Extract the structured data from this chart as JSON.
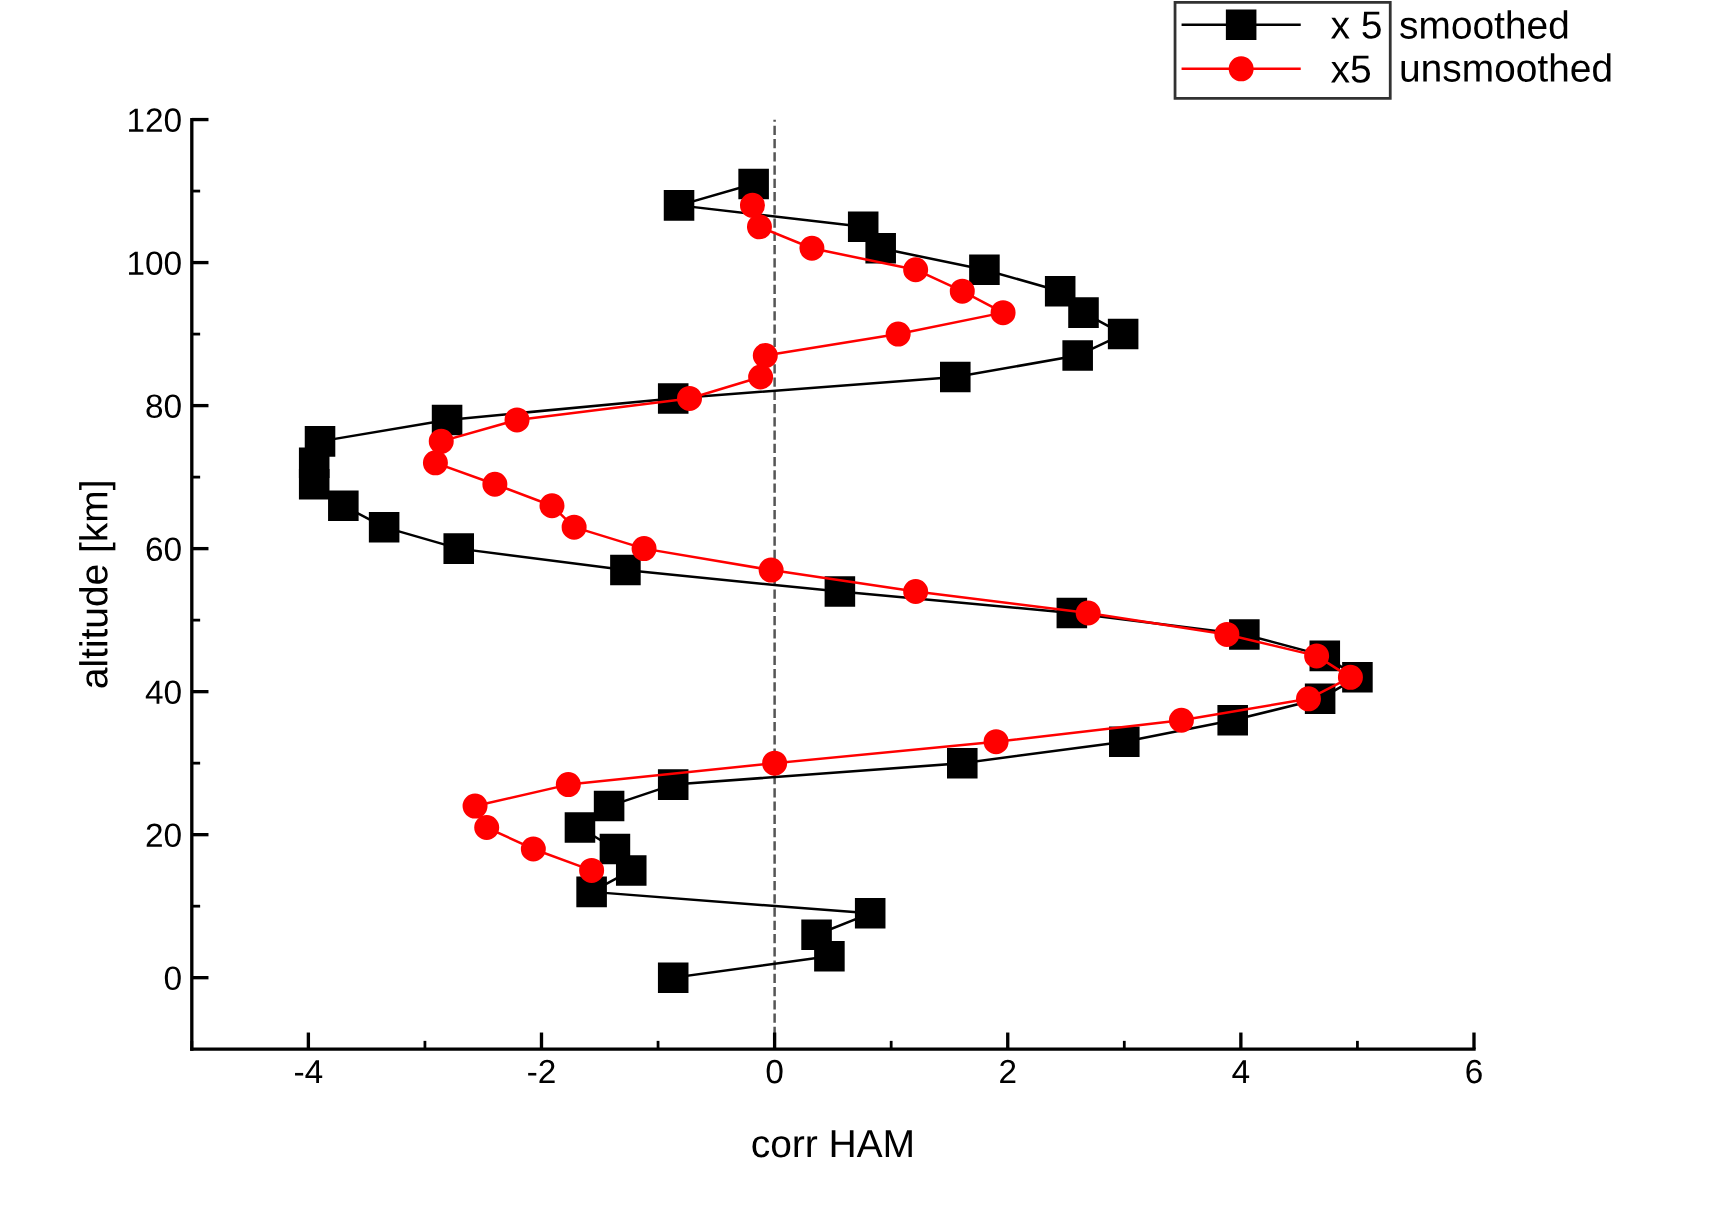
{
  "chart_data": {
    "type": "line",
    "xlabel": "corr HAM",
    "ylabel": "altitude [km]",
    "xlim": [
      -5,
      6
    ],
    "ylim": [
      -10,
      120
    ],
    "xticks": [
      -4,
      -2,
      0,
      2,
      4,
      6
    ],
    "yticks": [
      0,
      20,
      40,
      60,
      80,
      100,
      120
    ],
    "grid": false,
    "legend": "top right",
    "line_style": "solid",
    "series": [
      {
        "name": "x 5",
        "color": "#000000",
        "marker": "square",
        "x": [
          -0.87,
          0.47,
          0.36,
          0.82,
          -1.57,
          -1.23,
          -1.37,
          -1.67,
          -1.42,
          -0.87,
          1.61,
          3.0,
          3.93,
          4.68,
          5.0,
          4.72,
          4.03,
          2.55,
          0.56,
          -1.28,
          -2.71,
          -3.35,
          -3.7,
          -3.95,
          -3.95,
          -3.9,
          -2.81,
          -0.87,
          1.55,
          2.6,
          2.99,
          2.65,
          2.45,
          1.8,
          0.91,
          0.76,
          -0.82,
          -0.18
        ],
        "values": [
          0,
          3,
          6,
          9,
          12,
          15,
          18,
          21,
          24,
          27,
          30,
          33,
          36,
          39,
          42,
          45,
          48,
          51,
          54,
          57,
          60,
          63,
          66,
          69,
          72,
          75,
          78,
          81,
          84,
          87,
          90,
          93,
          96,
          99,
          102,
          105,
          108,
          111
        ]
      },
      {
        "name": "x5",
        "color": "#ff0000",
        "marker": "circle",
        "x": [
          -1.57,
          -2.07,
          -2.47,
          -2.57,
          -1.77,
          0.0,
          1.9,
          3.49,
          4.58,
          4.94,
          4.65,
          3.88,
          2.69,
          1.21,
          -0.03,
          -1.12,
          -1.72,
          -1.91,
          -2.4,
          -2.91,
          -2.86,
          -2.21,
          -0.73,
          -0.12,
          -0.08,
          1.06,
          1.96,
          1.61,
          1.21,
          0.32,
          -0.13,
          -0.19
        ],
        "values": [
          15,
          18,
          21,
          24,
          27,
          30,
          33,
          36,
          39,
          42,
          45,
          48,
          51,
          54,
          57,
          60,
          63,
          66,
          69,
          72,
          75,
          78,
          81,
          84,
          87,
          90,
          93,
          96,
          99,
          102,
          105,
          108
        ]
      }
    ],
    "ref_lines": [
      {
        "axis": "x",
        "value": 0,
        "color": "#555555",
        "line_style": "dashed"
      }
    ],
    "annotations": [
      "smoothed",
      "unsmoothed"
    ]
  }
}
